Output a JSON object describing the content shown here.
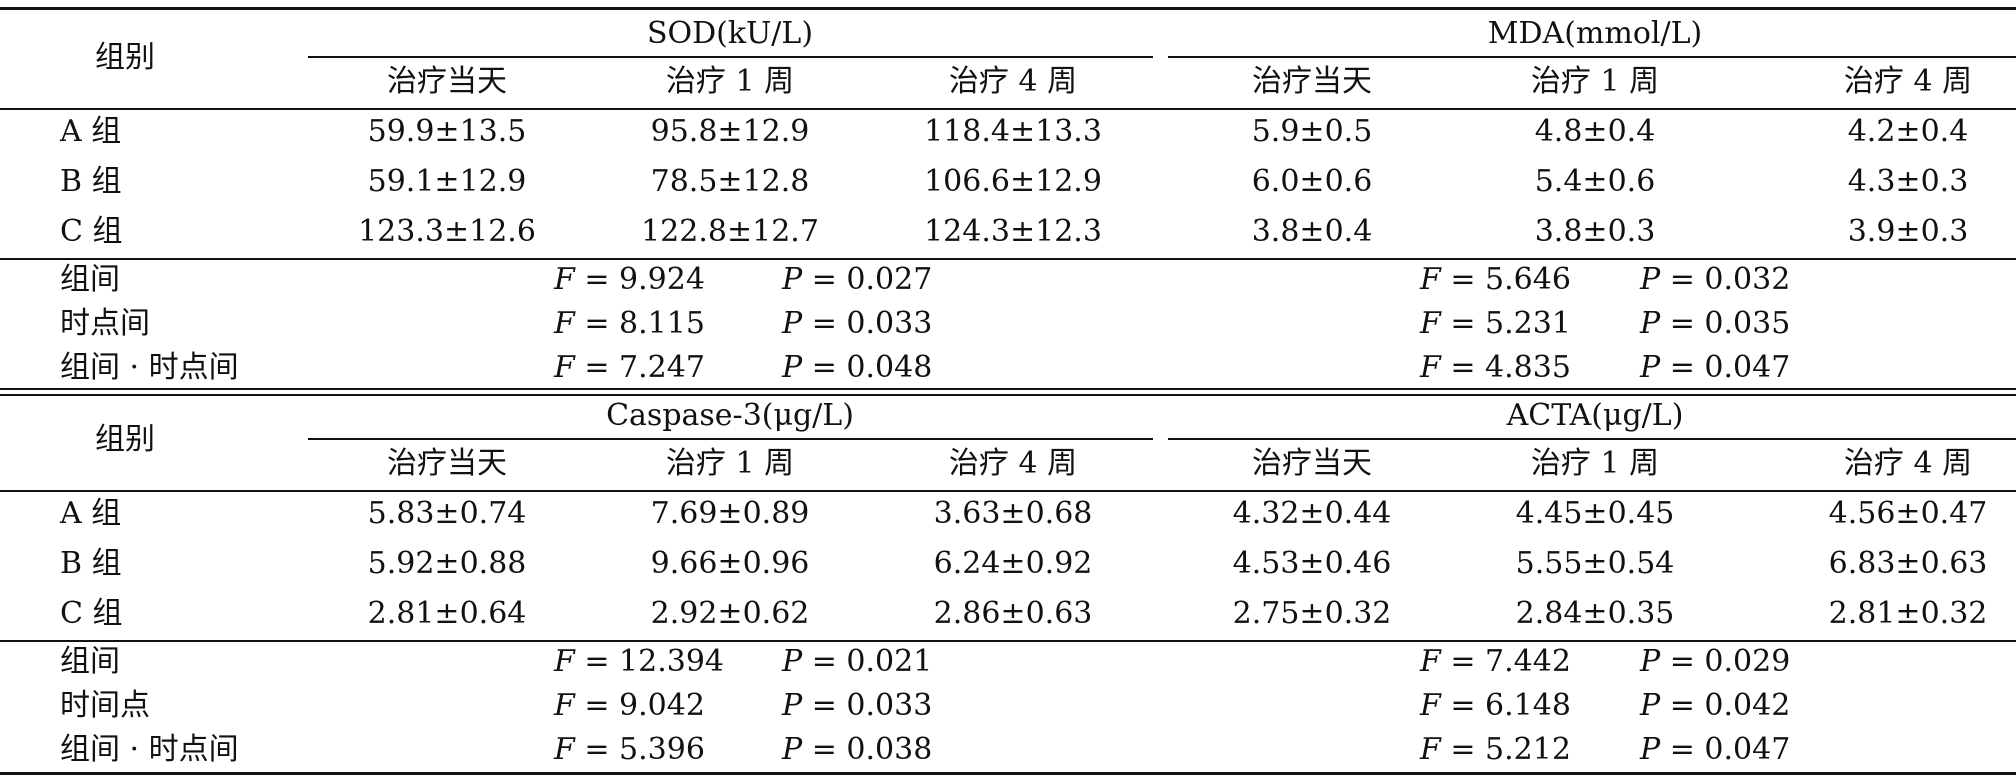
{
  "sections": [
    {
      "group_header": "组别",
      "left_title": "SOD(kU/L)",
      "right_title": "MDA(mmol/L)",
      "subheaders": [
        "治疗当天",
        "治疗 1 周",
        "治疗 4 周",
        "治疗当天",
        "治疗 1 周",
        "治疗 4 周"
      ],
      "rows": [
        {
          "label": "A 组",
          "values": [
            "59.9±13.5",
            "95.8±12.9",
            "118.4±13.3",
            "5.9±0.5",
            "4.8±0.4",
            "4.2±0.4"
          ]
        },
        {
          "label": "B 组",
          "values": [
            "59.1±12.9",
            "78.5±12.8",
            "106.6±12.9",
            "6.0±0.6",
            "5.4±0.6",
            "4.3±0.3"
          ]
        },
        {
          "label": "C 组",
          "values": [
            "123.3±12.6",
            "122.8±12.7",
            "124.3±12.3",
            "3.8±0.4",
            "3.8±0.3",
            "3.9±0.3"
          ]
        }
      ],
      "stats": [
        {
          "label": "组间",
          "left_f": "9.924",
          "left_p": "0.027",
          "right_f": "5.646",
          "right_p": "0.032"
        },
        {
          "label": "时点间",
          "left_f": "8.115",
          "left_p": "0.033",
          "right_f": "5.231",
          "right_p": "0.035"
        },
        {
          "label": "组间 · 时点间",
          "left_f": "7.247",
          "left_p": "0.048",
          "right_f": "4.835",
          "right_p": "0.047"
        }
      ]
    },
    {
      "group_header": "组别",
      "left_title": "Caspase-3(μg/L)",
      "right_title": "ACTA(μg/L)",
      "subheaders": [
        "治疗当天",
        "治疗 1 周",
        "治疗 4 周",
        "治疗当天",
        "治疗 1 周",
        "治疗 4 周"
      ],
      "rows": [
        {
          "label": "A 组",
          "values": [
            "5.83±0.74",
            "7.69±0.89",
            "3.63±0.68",
            "4.32±0.44",
            "4.45±0.45",
            "4.56±0.47"
          ]
        },
        {
          "label": "B 组",
          "values": [
            "5.92±0.88",
            "9.66±0.96",
            "6.24±0.92",
            "4.53±0.46",
            "5.55±0.54",
            "6.83±0.63"
          ]
        },
        {
          "label": "C 组",
          "values": [
            "2.81±0.64",
            "2.92±0.62",
            "2.86±0.63",
            "2.75±0.32",
            "2.84±0.35",
            "2.81±0.32"
          ]
        }
      ],
      "stats": [
        {
          "label": "组间",
          "left_f": "12.394",
          "left_p": "0.021",
          "right_f": "7.442",
          "right_p": "0.029"
        },
        {
          "label": "时间点",
          "left_f": "9.042",
          "left_p": "0.033",
          "right_f": "6.148",
          "right_p": "0.042"
        },
        {
          "label": "组间 · 时点间",
          "left_f": "5.396",
          "left_p": "0.038",
          "right_f": "5.212",
          "right_p": "0.047"
        }
      ]
    }
  ]
}
